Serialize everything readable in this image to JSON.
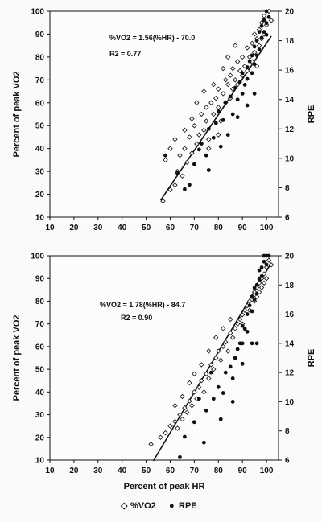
{
  "chart_data": [
    {
      "type": "scatter",
      "title": "",
      "xlabel": "",
      "ylabel": "Percent of peak VO2",
      "y2label": "RPE",
      "xlim": [
        10,
        105
      ],
      "ylim": [
        10,
        100
      ],
      "y2lim": [
        6,
        20
      ],
      "xticks": [
        "10",
        "20",
        "30",
        "40",
        "50",
        "60",
        "70",
        "80",
        "90",
        "100"
      ],
      "yticks": [
        "10",
        "20",
        "30",
        "40",
        "50",
        "60",
        "70",
        "80",
        "90",
        "100"
      ],
      "y2ticks": [
        "6",
        "8",
        "10",
        "12",
        "14",
        "16",
        "18",
        "20"
      ],
      "annotation": {
        "equation": "%VO2 = 1.56(%HR) - 70.0",
        "r2": "R2 = 0.77"
      },
      "fit": {
        "slope": 1.56,
        "intercept": -70.0,
        "x_range": [
          56,
          102
        ]
      },
      "series": [
        {
          "name": "%VO2",
          "axis": "left",
          "marker": "open-diamond",
          "points": [
            [
              57,
              17
            ],
            [
              60,
              22
            ],
            [
              62,
              24
            ],
            [
              63,
              30
            ],
            [
              64,
              37
            ],
            [
              65,
              28
            ],
            [
              66,
              40
            ],
            [
              67,
              34
            ],
            [
              68,
              45
            ],
            [
              69,
              38
            ],
            [
              70,
              50
            ],
            [
              71,
              42
            ],
            [
              72,
              46
            ],
            [
              73,
              55
            ],
            [
              74,
              48
            ],
            [
              75,
              52
            ],
            [
              75,
              58
            ],
            [
              76,
              44
            ],
            [
              77,
              60
            ],
            [
              78,
              55
            ],
            [
              79,
              62
            ],
            [
              80,
              58
            ],
            [
              80,
              66
            ],
            [
              81,
              52
            ],
            [
              82,
              64
            ],
            [
              83,
              70
            ],
            [
              83,
              60
            ],
            [
              84,
              68
            ],
            [
              85,
              72
            ],
            [
              85,
              62
            ],
            [
              86,
              75
            ],
            [
              86,
              66
            ],
            [
              87,
              70
            ],
            [
              88,
              78
            ],
            [
              88,
              68
            ],
            [
              89,
              74
            ],
            [
              90,
              80
            ],
            [
              90,
              72
            ],
            [
              91,
              76
            ],
            [
              92,
              84
            ],
            [
              92,
              74
            ],
            [
              93,
              80
            ],
            [
              94,
              86
            ],
            [
              94,
              78
            ],
            [
              95,
              90
            ],
            [
              95,
              82
            ],
            [
              96,
              88
            ],
            [
              96,
              76
            ],
            [
              97,
              92
            ],
            [
              97,
              85
            ],
            [
              98,
              95
            ],
            [
              98,
              88
            ],
            [
              99,
              90
            ],
            [
              99,
              98
            ],
            [
              100,
              94
            ],
            [
              101,
              100
            ],
            [
              102,
              96
            ],
            [
              71,
              60
            ],
            [
              74,
              65
            ],
            [
              78,
              68
            ],
            [
              82,
              75
            ],
            [
              84,
              80
            ],
            [
              87,
              85
            ],
            [
              66,
              48
            ],
            [
              69,
              53
            ],
            [
              62,
              44
            ],
            [
              60,
              40
            ],
            [
              58,
              35
            ],
            [
              76,
              40
            ],
            [
              80,
              46
            ]
          ]
        },
        {
          "name": "RPE",
          "axis": "right",
          "marker": "filled-circle",
          "points": [
            [
              58,
              10.2
            ],
            [
              63,
              9.0
            ],
            [
              66,
              7.9
            ],
            [
              68,
              8.2
            ],
            [
              70,
              9.6
            ],
            [
              72,
              10.6
            ],
            [
              73,
              11.0
            ],
            [
              75,
              10.2
            ],
            [
              76,
              12.0
            ],
            [
              78,
              11.4
            ],
            [
              79,
              12.4
            ],
            [
              80,
              13.2
            ],
            [
              82,
              12.6
            ],
            [
              83,
              13.8
            ],
            [
              85,
              14.2
            ],
            [
              86,
              13.0
            ],
            [
              87,
              14.8
            ],
            [
              88,
              14.0
            ],
            [
              89,
              15.2
            ],
            [
              90,
              15.8
            ],
            [
              90,
              14.4
            ],
            [
              91,
              15.0
            ],
            [
              92,
              16.2
            ],
            [
              92,
              15.4
            ],
            [
              93,
              16.6
            ],
            [
              94,
              15.8
            ],
            [
              94,
              17.0
            ],
            [
              95,
              16.4
            ],
            [
              95,
              17.6
            ],
            [
              96,
              17.0
            ],
            [
              96,
              18.0
            ],
            [
              97,
              17.4
            ],
            [
              97,
              18.6
            ],
            [
              98,
              18.2
            ],
            [
              98,
              19.0
            ],
            [
              99,
              19.4
            ],
            [
              99,
              18.6
            ],
            [
              100,
              20.0
            ],
            [
              100,
              19.2
            ],
            [
              100,
              18.4
            ],
            [
              101,
              19.6
            ],
            [
              76,
              9.2
            ],
            [
              81,
              10.8
            ],
            [
              84,
              11.6
            ],
            [
              88,
              12.8
            ],
            [
              92,
              13.6
            ],
            [
              95,
              14.4
            ]
          ]
        }
      ]
    },
    {
      "type": "scatter",
      "title": "",
      "xlabel": "Percent of peak HR",
      "ylabel": "Percent of peak VO2",
      "y2label": "RPE",
      "xlim": [
        10,
        105
      ],
      "ylim": [
        10,
        100
      ],
      "y2lim": [
        6,
        20
      ],
      "xticks": [
        "10",
        "20",
        "30",
        "40",
        "50",
        "60",
        "70",
        "80",
        "90",
        "100"
      ],
      "yticks": [
        "10",
        "20",
        "30",
        "40",
        "50",
        "60",
        "70",
        "80",
        "90",
        "100"
      ],
      "y2ticks": [
        "6",
        "8",
        "10",
        "12",
        "14",
        "16",
        "18",
        "20"
      ],
      "annotation": {
        "equation": "%VO2 = 1.78(%HR) - 84.7",
        "r2": "R2 = 0.90"
      },
      "fit": {
        "slope": 1.78,
        "intercept": -84.7,
        "x_range": [
          53,
          102
        ]
      },
      "series": [
        {
          "name": "%VO2",
          "axis": "left",
          "marker": "open-diamond",
          "points": [
            [
              52,
              17
            ],
            [
              56,
              20
            ],
            [
              58,
              22
            ],
            [
              60,
              25
            ],
            [
              62,
              27
            ],
            [
              63,
              24
            ],
            [
              64,
              30
            ],
            [
              65,
              28
            ],
            [
              66,
              33
            ],
            [
              67,
              31
            ],
            [
              68,
              36
            ],
            [
              69,
              34
            ],
            [
              70,
              40
            ],
            [
              71,
              37
            ],
            [
              72,
              42
            ],
            [
              73,
              45
            ],
            [
              74,
              40
            ],
            [
              75,
              48
            ],
            [
              76,
              46
            ],
            [
              77,
              52
            ],
            [
              78,
              50
            ],
            [
              79,
              55
            ],
            [
              80,
              58
            ],
            [
              81,
              54
            ],
            [
              82,
              60
            ],
            [
              83,
              62
            ],
            [
              84,
              58
            ],
            [
              85,
              66
            ],
            [
              86,
              64
            ],
            [
              87,
              68
            ],
            [
              88,
              70
            ],
            [
              89,
              72
            ],
            [
              90,
              74
            ],
            [
              90,
              70
            ],
            [
              91,
              76
            ],
            [
              92,
              78
            ],
            [
              93,
              80
            ],
            [
              93,
              76
            ],
            [
              94,
              82
            ],
            [
              95,
              84
            ],
            [
              95,
              80
            ],
            [
              96,
              86
            ],
            [
              96,
              82
            ],
            [
              97,
              88
            ],
            [
              97,
              84
            ],
            [
              98,
              90
            ],
            [
              98,
              86
            ],
            [
              99,
              92
            ],
            [
              99,
              88
            ],
            [
              100,
              95
            ],
            [
              100,
              90
            ],
            [
              101,
              98
            ],
            [
              102,
              96
            ],
            [
              68,
              44
            ],
            [
              70,
              48
            ],
            [
              73,
              52
            ],
            [
              76,
              58
            ],
            [
              79,
              64
            ],
            [
              82,
              68
            ],
            [
              85,
              72
            ],
            [
              62,
              34
            ],
            [
              65,
              38
            ]
          ]
        },
        {
          "name": "RPE",
          "axis": "right",
          "marker": "filled-circle",
          "points": [
            [
              64,
              6.2
            ],
            [
              66,
              7.6
            ],
            [
              70,
              8.6
            ],
            [
              74,
              7.2
            ],
            [
              75,
              9.4
            ],
            [
              78,
              10.2
            ],
            [
              80,
              11.0
            ],
            [
              82,
              10.6
            ],
            [
              83,
              12.0
            ],
            [
              85,
              12.4
            ],
            [
              86,
              11.6
            ],
            [
              87,
              13.0
            ],
            [
              88,
              13.6
            ],
            [
              89,
              14.0
            ],
            [
              90,
              14.0
            ],
            [
              90,
              15.2
            ],
            [
              91,
              15.0
            ],
            [
              92,
              16.0
            ],
            [
              92,
              14.8
            ],
            [
              93,
              16.6
            ],
            [
              94,
              16.2
            ],
            [
              94,
              17.2
            ],
            [
              95,
              17.0
            ],
            [
              95,
              17.8
            ],
            [
              96,
              18.0
            ],
            [
              96,
              17.4
            ],
            [
              97,
              18.4
            ],
            [
              97,
              19.0
            ],
            [
              98,
              19.2
            ],
            [
              98,
              18.6
            ],
            [
              99,
              19.6
            ],
            [
              99,
              20.0
            ],
            [
              100,
              20.0
            ],
            [
              100,
              19.4
            ],
            [
              101,
              20.0
            ],
            [
              72,
              10.2
            ],
            [
              77,
              12.0
            ],
            [
              81,
              8.8
            ],
            [
              86,
              10.0
            ],
            [
              90,
              12.6
            ],
            [
              94,
              14.0
            ],
            [
              96,
              14.0
            ]
          ]
        }
      ]
    }
  ],
  "legend": {
    "items": [
      {
        "label": "%VO2",
        "symbol": "◇"
      },
      {
        "label": "RPE",
        "symbol": "●"
      }
    ]
  }
}
